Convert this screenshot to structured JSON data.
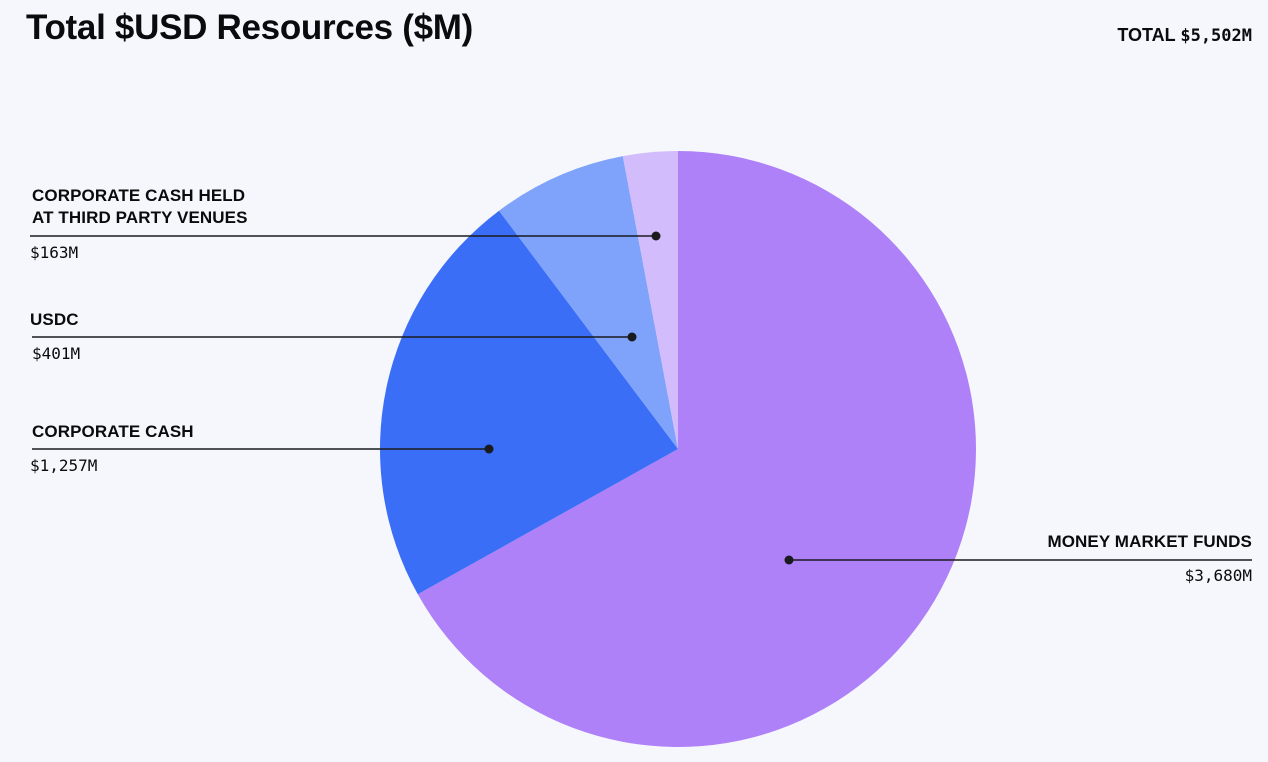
{
  "chart_data": {
    "type": "pie",
    "title": "Total $USD Resources ($M)",
    "total_label": "TOTAL",
    "total_value": "$5,502M",
    "slices": [
      {
        "name": "MONEY MARKET FUNDS",
        "name_lines": [
          "MONEY MARKET FUNDS"
        ],
        "value": 3680,
        "value_label": "$3,680M",
        "color": "#ae81f8"
      },
      {
        "name": "CORPORATE CASH",
        "name_lines": [
          "CORPORATE CASH"
        ],
        "value": 1257,
        "value_label": "$1,257M",
        "color": "#3b6ef6"
      },
      {
        "name": "USDC",
        "name_lines": [
          "USDC"
        ],
        "value": 401,
        "value_label": "$401M",
        "color": "#7fa3fb"
      },
      {
        "name": "CORPORATE CASH HELD AT THIRD PARTY VENUES",
        "name_lines": [
          "CORPORATE CASH HELD",
          "AT THIRD PARTY VENUES"
        ],
        "value": 163,
        "value_label": "$163M",
        "color": "#d3bcfb"
      }
    ]
  }
}
